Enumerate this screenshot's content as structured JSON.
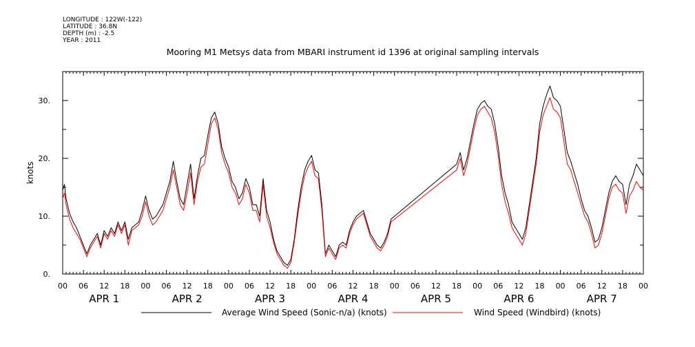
{
  "header": {
    "meta_lines": [
      "LONGITUDE : 122W(-122)",
      "LATITUDE : 36.8N",
      "DEPTH (m) : -2.5",
      "YEAR : 2011"
    ],
    "title": "Mooring M1 Metsys data from MBARI instrument id 1396 at original sampling intervals"
  },
  "chart_data": {
    "type": "line",
    "ylabel": "knots",
    "ylim": [
      0,
      35
    ],
    "yticks": [
      0,
      10,
      20,
      30
    ],
    "ytick_labels": [
      "0.",
      "10.",
      "20.",
      "30."
    ],
    "xlim_hours": [
      0,
      168
    ],
    "x_hour_labels": [
      "00",
      "06",
      "12",
      "18",
      "00",
      "06",
      "12",
      "18",
      "00",
      "06",
      "12",
      "18",
      "00",
      "06",
      "12",
      "18",
      "00",
      "06",
      "12",
      "18",
      "00",
      "06",
      "12",
      "18",
      "00",
      "06",
      "12",
      "18",
      "00"
    ],
    "day_labels": [
      "APR 1",
      "APR 2",
      "APR 3",
      "APR 4",
      "APR 5",
      "APR 6",
      "APR 7"
    ],
    "grid": false,
    "legend_position": "bottom",
    "series": [
      {
        "name": "Average Wind Speed (Sonic-n/a) (knots)",
        "color": "#000000",
        "points": [
          [
            0,
            14.5
          ],
          [
            0.5,
            15.5
          ],
          [
            1,
            13
          ],
          [
            2,
            10.5
          ],
          [
            3,
            9
          ],
          [
            4,
            8
          ],
          [
            5,
            6.5
          ],
          [
            6,
            5
          ],
          [
            7,
            3.5
          ],
          [
            8,
            5
          ],
          [
            9,
            6
          ],
          [
            10,
            7
          ],
          [
            11,
            5
          ],
          [
            12,
            7.5
          ],
          [
            13,
            6.5
          ],
          [
            14,
            8
          ],
          [
            15,
            7
          ],
          [
            16,
            9
          ],
          [
            17,
            7.5
          ],
          [
            18,
            9
          ],
          [
            19,
            6
          ],
          [
            20,
            8
          ],
          [
            21,
            8.5
          ],
          [
            22,
            9
          ],
          [
            23,
            11
          ],
          [
            24,
            13.5
          ],
          [
            25,
            11
          ],
          [
            26,
            9.5
          ],
          [
            27,
            10
          ],
          [
            28,
            11
          ],
          [
            29,
            12
          ],
          [
            30,
            14
          ],
          [
            31,
            16
          ],
          [
            32,
            19.5
          ],
          [
            33,
            16
          ],
          [
            34,
            13
          ],
          [
            35,
            12
          ],
          [
            36,
            15.5
          ],
          [
            37,
            19
          ],
          [
            38,
            13
          ],
          [
            39,
            17
          ],
          [
            40,
            20
          ],
          [
            41,
            20.5
          ],
          [
            42,
            24
          ],
          [
            43,
            27
          ],
          [
            44,
            28
          ],
          [
            45,
            26
          ],
          [
            46,
            22
          ],
          [
            47,
            20
          ],
          [
            48,
            18.5
          ],
          [
            49,
            16
          ],
          [
            50,
            15
          ],
          [
            51,
            13
          ],
          [
            52,
            14
          ],
          [
            53,
            16.5
          ],
          [
            54,
            15
          ],
          [
            55,
            12
          ],
          [
            56,
            12
          ],
          [
            57,
            10
          ],
          [
            58,
            16.5
          ],
          [
            59,
            11
          ],
          [
            60,
            9
          ],
          [
            61,
            6
          ],
          [
            62,
            4
          ],
          [
            63,
            3
          ],
          [
            64,
            2
          ],
          [
            65,
            1.5
          ],
          [
            66,
            2.5
          ],
          [
            67,
            6
          ],
          [
            68,
            11
          ],
          [
            69,
            15
          ],
          [
            70,
            18
          ],
          [
            71,
            19.5
          ],
          [
            72,
            20.5
          ],
          [
            73,
            18
          ],
          [
            74,
            17.5
          ],
          [
            75,
            12
          ],
          [
            76,
            3.5
          ],
          [
            77,
            5
          ],
          [
            78,
            4
          ],
          [
            79,
            3
          ],
          [
            80,
            5
          ],
          [
            81,
            5.5
          ],
          [
            82,
            5
          ],
          [
            83,
            7.5
          ],
          [
            84,
            9
          ],
          [
            85,
            10
          ],
          [
            86,
            10.5
          ],
          [
            87,
            11
          ],
          [
            88,
            9
          ],
          [
            89,
            7
          ],
          [
            90,
            6
          ],
          [
            91,
            5
          ],
          [
            92,
            4.5
          ],
          [
            93,
            5.5
          ],
          [
            94,
            7
          ],
          [
            95,
            9.5
          ],
          [
            114,
            19
          ],
          [
            115,
            21
          ],
          [
            116,
            18
          ],
          [
            117,
            20
          ],
          [
            118,
            23
          ],
          [
            119,
            26
          ],
          [
            120,
            28.5
          ],
          [
            121,
            29.5
          ],
          [
            122,
            30
          ],
          [
            123,
            29
          ],
          [
            124,
            28.5
          ],
          [
            125,
            26
          ],
          [
            126,
            22
          ],
          [
            127,
            17
          ],
          [
            128,
            14
          ],
          [
            129,
            12
          ],
          [
            130,
            9
          ],
          [
            131,
            8
          ],
          [
            132,
            7
          ],
          [
            133,
            6
          ],
          [
            134,
            8
          ],
          [
            135,
            12
          ],
          [
            136,
            16
          ],
          [
            137,
            20
          ],
          [
            138,
            26
          ],
          [
            139,
            29
          ],
          [
            140,
            31
          ],
          [
            141,
            32.5
          ],
          [
            142,
            30.5
          ],
          [
            143,
            30
          ],
          [
            144,
            29
          ],
          [
            145,
            25
          ],
          [
            146,
            21
          ],
          [
            147,
            19.5
          ],
          [
            148,
            17.5
          ],
          [
            149,
            15.5
          ],
          [
            150,
            13
          ],
          [
            151,
            11
          ],
          [
            152,
            10
          ],
          [
            153,
            8
          ],
          [
            154,
            5.5
          ],
          [
            155,
            6
          ],
          [
            156,
            8
          ],
          [
            157,
            11
          ],
          [
            158,
            14
          ],
          [
            159,
            16
          ],
          [
            160,
            17
          ],
          [
            161,
            16
          ],
          [
            162,
            15.5
          ],
          [
            163,
            12
          ],
          [
            164,
            15.5
          ],
          [
            165,
            17
          ],
          [
            166,
            19
          ],
          [
            167,
            18
          ],
          [
            168,
            17
          ]
        ]
      },
      {
        "name": "Wind Speed (Windbird) (knots)",
        "color": "#ff0000",
        "points": [
          [
            0,
            13
          ],
          [
            0.5,
            14
          ],
          [
            1,
            12
          ],
          [
            2,
            9.5
          ],
          [
            3,
            8
          ],
          [
            4,
            7
          ],
          [
            5,
            6
          ],
          [
            6,
            4.5
          ],
          [
            7,
            3
          ],
          [
            8,
            4.5
          ],
          [
            9,
            5.5
          ],
          [
            10,
            6.5
          ],
          [
            11,
            4.5
          ],
          [
            12,
            7
          ],
          [
            13,
            6
          ],
          [
            14,
            7.5
          ],
          [
            15,
            6.5
          ],
          [
            16,
            8.5
          ],
          [
            17,
            7
          ],
          [
            18,
            8.5
          ],
          [
            19,
            5
          ],
          [
            20,
            7.5
          ],
          [
            21,
            8
          ],
          [
            22,
            8.5
          ],
          [
            23,
            10
          ],
          [
            24,
            12.5
          ],
          [
            25,
            10
          ],
          [
            26,
            8.5
          ],
          [
            27,
            9
          ],
          [
            28,
            10
          ],
          [
            29,
            11
          ],
          [
            30,
            13
          ],
          [
            31,
            15
          ],
          [
            32,
            18
          ],
          [
            33,
            15
          ],
          [
            34,
            12
          ],
          [
            35,
            11
          ],
          [
            36,
            14
          ],
          [
            37,
            17.5
          ],
          [
            38,
            12
          ],
          [
            39,
            16
          ],
          [
            40,
            18.5
          ],
          [
            41,
            19
          ],
          [
            42,
            22.5
          ],
          [
            43,
            26
          ],
          [
            44,
            27
          ],
          [
            45,
            25
          ],
          [
            46,
            21
          ],
          [
            47,
            19
          ],
          [
            48,
            17.5
          ],
          [
            49,
            15
          ],
          [
            50,
            14
          ],
          [
            51,
            12
          ],
          [
            52,
            13
          ],
          [
            53,
            15.5
          ],
          [
            54,
            14
          ],
          [
            55,
            11
          ],
          [
            56,
            11
          ],
          [
            57,
            9
          ],
          [
            58,
            15.5
          ],
          [
            59,
            10
          ],
          [
            60,
            8
          ],
          [
            61,
            5.5
          ],
          [
            62,
            3.5
          ],
          [
            63,
            2.5
          ],
          [
            64,
            1.5
          ],
          [
            65,
            1
          ],
          [
            66,
            2
          ],
          [
            67,
            5.5
          ],
          [
            68,
            10
          ],
          [
            69,
            14
          ],
          [
            70,
            17
          ],
          [
            71,
            18.5
          ],
          [
            72,
            19.5
          ],
          [
            73,
            17
          ],
          [
            74,
            16.5
          ],
          [
            75,
            11
          ],
          [
            76,
            3
          ],
          [
            77,
            4.5
          ],
          [
            78,
            3.5
          ],
          [
            79,
            2.5
          ],
          [
            80,
            4.5
          ],
          [
            81,
            5
          ],
          [
            82,
            4.5
          ],
          [
            83,
            7
          ],
          [
            84,
            8.5
          ],
          [
            85,
            9.5
          ],
          [
            86,
            10
          ],
          [
            87,
            10.5
          ],
          [
            88,
            8.5
          ],
          [
            89,
            6.5
          ],
          [
            90,
            5.5
          ],
          [
            91,
            4.5
          ],
          [
            92,
            4
          ],
          [
            93,
            5
          ],
          [
            94,
            6.5
          ],
          [
            95,
            9
          ],
          [
            114,
            18
          ],
          [
            115,
            20
          ],
          [
            116,
            17
          ],
          [
            117,
            19
          ],
          [
            118,
            22
          ],
          [
            119,
            25
          ],
          [
            120,
            27.5
          ],
          [
            121,
            28.5
          ],
          [
            122,
            29
          ],
          [
            123,
            28
          ],
          [
            124,
            27
          ],
          [
            125,
            24.5
          ],
          [
            126,
            20.5
          ],
          [
            127,
            15.5
          ],
          [
            128,
            12.5
          ],
          [
            129,
            10.5
          ],
          [
            130,
            8
          ],
          [
            131,
            7
          ],
          [
            132,
            6
          ],
          [
            133,
            5
          ],
          [
            134,
            7
          ],
          [
            135,
            11
          ],
          [
            136,
            15
          ],
          [
            137,
            19
          ],
          [
            138,
            24.5
          ],
          [
            139,
            27.5
          ],
          [
            140,
            29
          ],
          [
            141,
            30.5
          ],
          [
            142,
            28.5
          ],
          [
            143,
            28
          ],
          [
            144,
            27
          ],
          [
            145,
            23
          ],
          [
            146,
            19
          ],
          [
            147,
            18
          ],
          [
            148,
            16
          ],
          [
            149,
            14
          ],
          [
            150,
            12
          ],
          [
            151,
            10
          ],
          [
            152,
            9
          ],
          [
            153,
            7
          ],
          [
            154,
            4.5
          ],
          [
            155,
            5
          ],
          [
            156,
            7
          ],
          [
            157,
            10
          ],
          [
            158,
            13
          ],
          [
            159,
            15
          ],
          [
            160,
            15.5
          ],
          [
            161,
            14.5
          ],
          [
            162,
            14
          ],
          [
            163,
            10.5
          ],
          [
            164,
            13.5
          ],
          [
            165,
            14.5
          ],
          [
            166,
            16
          ],
          [
            167,
            15
          ],
          [
            168,
            14.5
          ]
        ]
      }
    ]
  }
}
